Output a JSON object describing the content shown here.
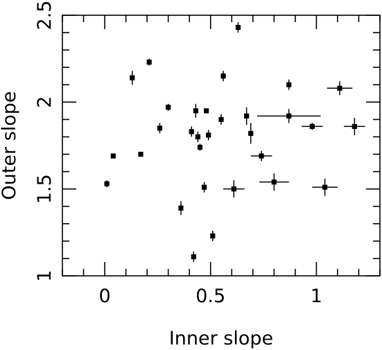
{
  "chart_data": {
    "type": "scatter",
    "xlabel": "Inner slope",
    "ylabel": "Outer slope",
    "xlim": [
      -0.2,
      1.3
    ],
    "ylim": [
      1.0,
      2.5
    ],
    "x_ticks": [
      0,
      0.5,
      1
    ],
    "x_tick_labels": [
      "0",
      "0.5",
      "1"
    ],
    "y_ticks": [
      1,
      1.5,
      2,
      2.5
    ],
    "y_tick_labels": [
      "1",
      "1.5",
      "2",
      "2.5"
    ],
    "grid": false,
    "legend": "none",
    "marker": "square",
    "color": "#000000",
    "series": [
      {
        "points": [
          {
            "x": 0.01,
            "y": 1.53,
            "xerr": 0.0,
            "yerr": 0.02
          },
          {
            "x": 0.04,
            "y": 1.69,
            "xerr": 0.0,
            "yerr": 0.0
          },
          {
            "x": 0.13,
            "y": 2.14,
            "xerr": 0.0,
            "yerr": 0.04
          },
          {
            "x": 0.17,
            "y": 1.7,
            "xerr": 0.0,
            "yerr": 0.0
          },
          {
            "x": 0.21,
            "y": 2.23,
            "xerr": 0.0,
            "yerr": 0.02
          },
          {
            "x": 0.26,
            "y": 1.85,
            "xerr": 0.0,
            "yerr": 0.03
          },
          {
            "x": 0.3,
            "y": 1.97,
            "xerr": 0.0,
            "yerr": 0.02
          },
          {
            "x": 0.36,
            "y": 1.39,
            "xerr": 0.0,
            "yerr": 0.04
          },
          {
            "x": 0.41,
            "y": 1.83,
            "xerr": 0.0,
            "yerr": 0.03
          },
          {
            "x": 0.42,
            "y": 1.11,
            "xerr": 0.0,
            "yerr": 0.03
          },
          {
            "x": 0.43,
            "y": 1.95,
            "xerr": 0.0,
            "yerr": 0.04
          },
          {
            "x": 0.44,
            "y": 1.8,
            "xerr": 0.0,
            "yerr": 0.03
          },
          {
            "x": 0.45,
            "y": 1.74,
            "xerr": 0.0,
            "yerr": 0.02
          },
          {
            "x": 0.47,
            "y": 1.51,
            "xerr": 0.0,
            "yerr": 0.03
          },
          {
            "x": 0.48,
            "y": 1.95,
            "xerr": 0.0,
            "yerr": 0.01
          },
          {
            "x": 0.49,
            "y": 1.81,
            "xerr": 0.0,
            "yerr": 0.03
          },
          {
            "x": 0.51,
            "y": 1.23,
            "xerr": 0.0,
            "yerr": 0.03
          },
          {
            "x": 0.55,
            "y": 1.9,
            "xerr": 0.0,
            "yerr": 0.03
          },
          {
            "x": 0.56,
            "y": 2.15,
            "xerr": 0.0,
            "yerr": 0.03
          },
          {
            "x": 0.61,
            "y": 1.5,
            "xerr": 0.05,
            "yerr": 0.05
          },
          {
            "x": 0.63,
            "y": 2.43,
            "xerr": 0.0,
            "yerr": 0.03
          },
          {
            "x": 0.67,
            "y": 1.92,
            "xerr": 0.0,
            "yerr": 0.05
          },
          {
            "x": 0.69,
            "y": 1.82,
            "xerr": 0.0,
            "yerr": 0.06
          },
          {
            "x": 0.74,
            "y": 1.69,
            "xerr": 0.05,
            "yerr": 0.03
          },
          {
            "x": 0.8,
            "y": 1.54,
            "xerr": 0.07,
            "yerr": 0.05
          },
          {
            "x": 0.87,
            "y": 2.1,
            "xerr": 0.0,
            "yerr": 0.03
          },
          {
            "x": 0.87,
            "y": 1.92,
            "xerr": 0.15,
            "yerr": 0.04
          },
          {
            "x": 0.98,
            "y": 1.86,
            "xerr": 0.05,
            "yerr": 0.02
          },
          {
            "x": 1.04,
            "y": 1.51,
            "xerr": 0.06,
            "yerr": 0.05
          },
          {
            "x": 1.11,
            "y": 2.08,
            "xerr": 0.06,
            "yerr": 0.04
          },
          {
            "x": 1.18,
            "y": 1.86,
            "xerr": 0.05,
            "yerr": 0.05
          }
        ]
      }
    ]
  }
}
